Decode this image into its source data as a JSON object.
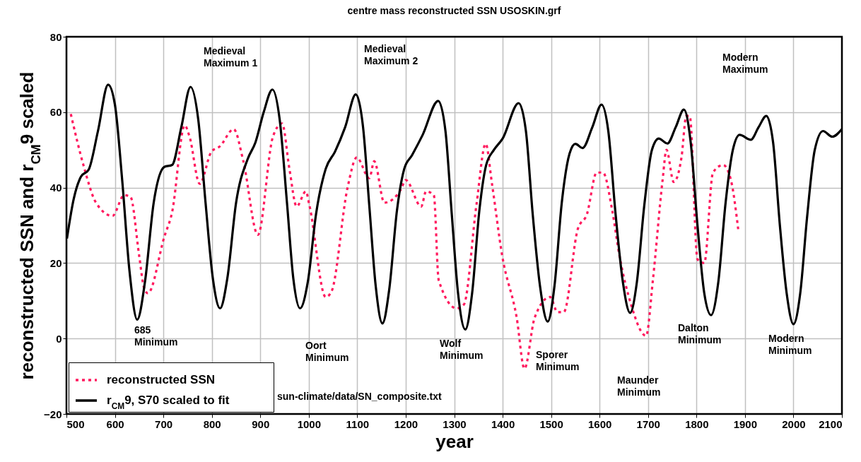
{
  "chart_data": {
    "type": "line",
    "title": "centre mass reconstructed SSN USOSKIN.grf",
    "xlabel": "year",
    "ylabel": "reconstructed SSN and r$_{CM}$9 scaled",
    "xlim": [
      500,
      2100
    ],
    "xticks": [
      500,
      600,
      700,
      800,
      900,
      1000,
      1100,
      1200,
      1300,
      1400,
      1500,
      1600,
      1700,
      1800,
      1900,
      2000,
      2100
    ],
    "ylim": [
      -20,
      80
    ],
    "yticks": [
      -20,
      0,
      20,
      40,
      60,
      80
    ],
    "grid": true,
    "legend": "bottom left",
    "series": [
      {
        "name": "reconstructed SSN",
        "color": "#ff1a5e",
        "line_style": "dotted",
        "x": [
          509,
          535,
          561,
          595,
          619,
          632,
          650,
          660,
          668,
          702,
          718,
          744,
          754,
          775,
          799,
          817,
          845,
          865,
          895,
          926,
          945,
          960,
          975,
          994,
          1001,
          1035,
          1047,
          1080,
          1099,
          1125,
          1135,
          1156,
          1190,
          1200,
          1232,
          1242,
          1258,
          1268,
          1305,
          1320,
          1346,
          1365,
          1378,
          1399,
          1429,
          1445,
          1466,
          1498,
          1513,
          1526,
          1555,
          1574,
          1594,
          1607,
          1626,
          1641,
          1665,
          1696,
          1710,
          1730,
          1738,
          1753,
          1769,
          1779,
          1786,
          1802,
          1816,
          1834,
          1855,
          1871,
          1886
        ],
        "values": [
          59.5,
          46,
          36,
          32.5,
          38,
          37.6,
          22,
          13.5,
          12,
          27,
          33.5,
          56.5,
          53.5,
          41,
          49.5,
          51,
          55.5,
          47,
          27.5,
          53.5,
          57,
          45,
          35,
          39,
          35.5,
          11,
          12.5,
          40,
          48,
          42.5,
          47,
          36,
          39.5,
          42,
          35,
          39,
          38,
          15.5,
          8,
          9,
          35.5,
          51.6,
          41,
          22,
          5.5,
          -8,
          5.5,
          11,
          7,
          7,
          29,
          33,
          44,
          44,
          34,
          22,
          9,
          0.7,
          15.5,
          42,
          50,
          41.5,
          48,
          59,
          59,
          21,
          20,
          44,
          46,
          42,
          29
        ]
      },
      {
        "name": "r$_{CM}$9, S70  scaled to fit",
        "color": "#000000",
        "line_style": "solid",
        "x": [
          501,
          515,
          530,
          546,
          565,
          586,
          600,
          615,
          630,
          646,
          662,
          680,
          702,
          718,
          737,
          756,
          772,
          787,
          802,
          817,
          832,
          850,
          874,
          890,
          907,
          925,
          940,
          955,
          968,
          982,
          998,
          1015,
          1035,
          1054,
          1075,
          1097,
          1112,
          1125,
          1138,
          1152,
          1166,
          1182,
          1197,
          1213,
          1235,
          1267,
          1282,
          1295,
          1308,
          1323,
          1337,
          1352,
          1366,
          1382,
          1400,
          1433,
          1448,
          1462,
          1477,
          1493,
          1507,
          1522,
          1538,
          1550,
          1565,
          1585,
          1604,
          1618,
          1633,
          1648,
          1663,
          1677,
          1692,
          1708,
          1722,
          1740,
          1757,
          1774,
          1788,
          1802,
          1816,
          1830,
          1845,
          1860,
          1875,
          1889,
          1912,
          1928,
          1944,
          1958,
          1972,
          1986,
          2000,
          2014,
          2028,
          2044,
          2061,
          2080,
          2100
        ],
        "values": [
          26.5,
          37,
          42.9,
          44.8,
          55,
          67.3,
          62,
          42,
          18,
          5,
          15,
          36,
          45.5,
          46,
          56,
          66.7,
          58,
          36,
          16,
          8,
          16,
          36,
          47.6,
          52,
          60,
          66,
          58,
          36,
          16,
          8,
          15,
          33,
          45,
          49.5,
          56,
          64.7,
          56,
          35,
          14,
          4,
          13,
          34,
          45,
          48.6,
          54,
          63,
          55,
          33,
          12,
          2.4,
          12,
          34,
          46,
          50,
          53,
          62.4,
          55,
          33,
          14,
          4.5,
          14,
          36,
          49,
          51.6,
          50.5,
          56,
          62,
          55,
          33,
          15,
          6.8,
          15,
          35,
          50,
          53,
          51.7,
          56,
          60.7,
          52,
          30,
          12,
          6.2,
          15,
          36,
          50,
          54,
          52.7,
          56,
          59,
          52,
          30,
          12,
          3.8,
          12,
          32,
          50,
          55,
          53.5,
          55.5
        ]
      }
    ],
    "annotations": [
      "Medieval Maximum 1",
      "685 Minimum",
      "Oort Minimum",
      "Medieval Maximum 2",
      "Wolf Minimum",
      "Sporer Minimum",
      "Maunder Minimum",
      "Dalton Minimum",
      "Modern Maximum",
      "Modern Minimum",
      "sun-climate/data/SN_composite.txt"
    ]
  }
}
